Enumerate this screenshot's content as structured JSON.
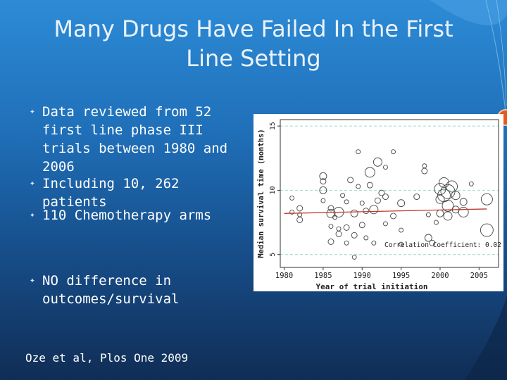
{
  "slide": {
    "title": "Many Drugs Have Failed In the First Line Setting",
    "bullets": [
      "Data reviewed from 52 first line phase III trials between 1980 and 2006",
      "Including 10, 262 patients",
      "110 Chemotherapy arms",
      "NO difference in outcomes/survival"
    ],
    "citation": "Oze et al, Plos One 2009",
    "colors": {
      "accent": "#e25a1c",
      "background_top": "#2d8bd6",
      "background_bottom": "#102d55"
    }
  },
  "chart_data": {
    "type": "scatter",
    "title": "",
    "xlabel": "Year of trial initiation",
    "ylabel": "Median survival time (months)",
    "xlim": [
      1979.5,
      2007.5
    ],
    "ylim": [
      4,
      15.5
    ],
    "xticks": [
      1980,
      1985,
      1990,
      1995,
      2000,
      2005
    ],
    "yticks": [
      5,
      10,
      15
    ],
    "grid": "horizontal dashed at 5, 10, 15",
    "annotation": "Correlation Coefficient: 0.02",
    "trend_line": {
      "x": [
        1980,
        2006
      ],
      "y": [
        8.2,
        8.55
      ],
      "color": "#c0392b"
    },
    "points": [
      {
        "x": 1981,
        "y": 9.4,
        "s": 3
      },
      {
        "x": 1981,
        "y": 8.3,
        "s": 3
      },
      {
        "x": 1982,
        "y": 8.6,
        "s": 4
      },
      {
        "x": 1982,
        "y": 7.7,
        "s": 4
      },
      {
        "x": 1982,
        "y": 8.1,
        "s": 3
      },
      {
        "x": 1985,
        "y": 11.1,
        "s": 5
      },
      {
        "x": 1985,
        "y": 10.7,
        "s": 4
      },
      {
        "x": 1985,
        "y": 10.0,
        "s": 5
      },
      {
        "x": 1985,
        "y": 9.2,
        "s": 3
      },
      {
        "x": 1986,
        "y": 8.6,
        "s": 4
      },
      {
        "x": 1986,
        "y": 7.2,
        "s": 3
      },
      {
        "x": 1986,
        "y": 6.0,
        "s": 4
      },
      {
        "x": 1986,
        "y": 8.2,
        "s": 6
      },
      {
        "x": 1986.5,
        "y": 7.9,
        "s": 3
      },
      {
        "x": 1987,
        "y": 8.3,
        "s": 7
      },
      {
        "x": 1987,
        "y": 7.0,
        "s": 3
      },
      {
        "x": 1987,
        "y": 6.6,
        "s": 4
      },
      {
        "x": 1987.5,
        "y": 9.6,
        "s": 3
      },
      {
        "x": 1988,
        "y": 9.1,
        "s": 3
      },
      {
        "x": 1988,
        "y": 7.1,
        "s": 4
      },
      {
        "x": 1988,
        "y": 5.9,
        "s": 3
      },
      {
        "x": 1988.5,
        "y": 10.8,
        "s": 4
      },
      {
        "x": 1989,
        "y": 8.2,
        "s": 5
      },
      {
        "x": 1989,
        "y": 6.5,
        "s": 4
      },
      {
        "x": 1989,
        "y": 4.8,
        "s": 3
      },
      {
        "x": 1989.5,
        "y": 10.3,
        "s": 3
      },
      {
        "x": 1989.5,
        "y": 13.0,
        "s": 3
      },
      {
        "x": 1990,
        "y": 7.3,
        "s": 4
      },
      {
        "x": 1990,
        "y": 9.0,
        "s": 3
      },
      {
        "x": 1990.5,
        "y": 8.4,
        "s": 4
      },
      {
        "x": 1990.5,
        "y": 6.3,
        "s": 3
      },
      {
        "x": 1991,
        "y": 11.4,
        "s": 7
      },
      {
        "x": 1991,
        "y": 10.4,
        "s": 4
      },
      {
        "x": 1991.5,
        "y": 8.5,
        "s": 6
      },
      {
        "x": 1991.5,
        "y": 5.9,
        "s": 3
      },
      {
        "x": 1992,
        "y": 9.2,
        "s": 4
      },
      {
        "x": 1992,
        "y": 12.2,
        "s": 6
      },
      {
        "x": 1992.5,
        "y": 9.8,
        "s": 4
      },
      {
        "x": 1993,
        "y": 11.8,
        "s": 3
      },
      {
        "x": 1993,
        "y": 9.5,
        "s": 4
      },
      {
        "x": 1993,
        "y": 7.4,
        "s": 3
      },
      {
        "x": 1994,
        "y": 8.0,
        "s": 4
      },
      {
        "x": 1994,
        "y": 13.0,
        "s": 3
      },
      {
        "x": 1995,
        "y": 9.0,
        "s": 5
      },
      {
        "x": 1995,
        "y": 6.9,
        "s": 3
      },
      {
        "x": 1995,
        "y": 5.8,
        "s": 3
      },
      {
        "x": 1997,
        "y": 9.5,
        "s": 4
      },
      {
        "x": 1998,
        "y": 11.5,
        "s": 4
      },
      {
        "x": 1998,
        "y": 11.9,
        "s": 3
      },
      {
        "x": 1998.5,
        "y": 6.3,
        "s": 5
      },
      {
        "x": 1998.5,
        "y": 8.1,
        "s": 3
      },
      {
        "x": 1999,
        "y": 5.9,
        "s": 4
      },
      {
        "x": 1999.5,
        "y": 7.5,
        "s": 3
      },
      {
        "x": 2000,
        "y": 10.1,
        "s": 8
      },
      {
        "x": 2000,
        "y": 9.3,
        "s": 6
      },
      {
        "x": 2000,
        "y": 8.2,
        "s": 5
      },
      {
        "x": 2000.5,
        "y": 10.6,
        "s": 7
      },
      {
        "x": 2000.5,
        "y": 9.6,
        "s": 9
      },
      {
        "x": 2001,
        "y": 9.9,
        "s": 10
      },
      {
        "x": 2001,
        "y": 8.8,
        "s": 8
      },
      {
        "x": 2001,
        "y": 8.0,
        "s": 6
      },
      {
        "x": 2001.5,
        "y": 10.3,
        "s": 8
      },
      {
        "x": 2002,
        "y": 9.6,
        "s": 6
      },
      {
        "x": 2002,
        "y": 8.5,
        "s": 5
      },
      {
        "x": 2003,
        "y": 8.3,
        "s": 7
      },
      {
        "x": 2003,
        "y": 9.1,
        "s": 5
      },
      {
        "x": 2004,
        "y": 10.5,
        "s": 3
      },
      {
        "x": 2006,
        "y": 9.3,
        "s": 8
      },
      {
        "x": 2006,
        "y": 6.9,
        "s": 9
      }
    ]
  }
}
